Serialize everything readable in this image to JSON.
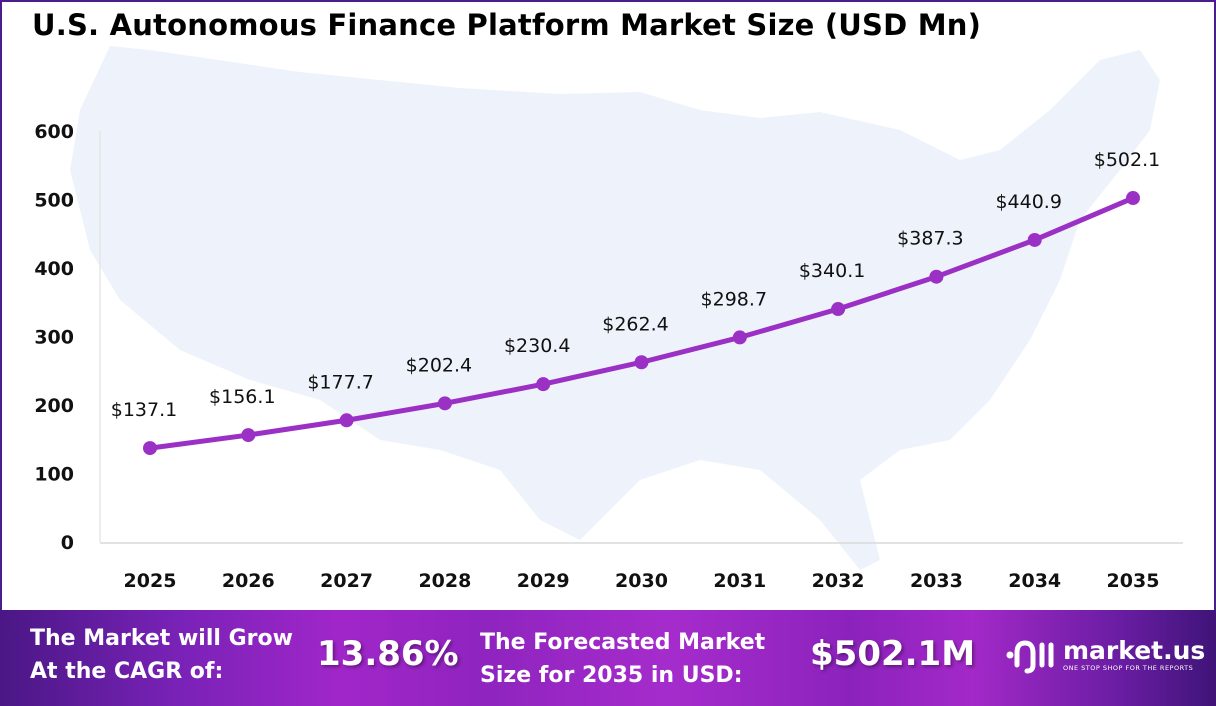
{
  "chart_data": {
    "type": "line",
    "title": "U.S. Autonomous Finance Platform Market Size (USD Mn)",
    "categories": [
      "2025",
      "2026",
      "2027",
      "2028",
      "2029",
      "2030",
      "2031",
      "2032",
      "2033",
      "2034",
      "2035"
    ],
    "values": [
      137.1,
      156.1,
      177.7,
      202.4,
      230.4,
      262.4,
      298.7,
      340.1,
      387.3,
      440.9,
      502.1
    ],
    "data_labels": [
      "$137.1",
      "$156.1",
      "$177.7",
      "$202.4",
      "$230.4",
      "$262.4",
      "$298.7",
      "$340.1",
      "$387.3",
      "$440.9",
      "$502.1"
    ],
    "yticks": [
      "0",
      "100",
      "200",
      "300",
      "400",
      "500",
      "600"
    ],
    "ylim": [
      0,
      600
    ],
    "xlabel": "",
    "ylabel": "",
    "grid": false,
    "line_color": "#9b30c4",
    "background": "US map silhouette, light blue"
  },
  "footer": {
    "cagr_label_line1": "The Market will Grow",
    "cagr_label_line2": "At the CAGR of:",
    "cagr_value": "13.86%",
    "forecast_label_line1": "The Forecasted Market",
    "forecast_label_line2": "Size for 2035 in USD:",
    "forecast_value": "$502.1M",
    "logo_name": "market.us",
    "logo_tagline": "ONE STOP SHOP FOR THE REPORTS"
  }
}
